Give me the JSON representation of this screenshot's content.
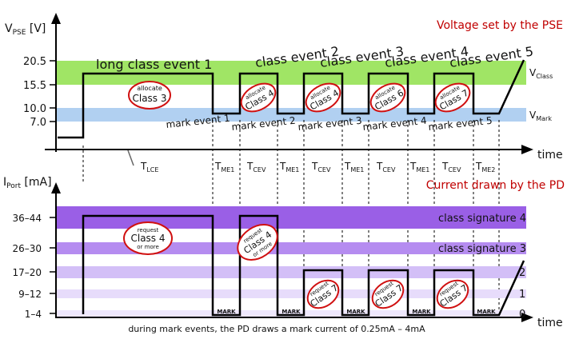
{
  "top": {
    "title": "Voltage set by the PSE",
    "axis_label_main": "V",
    "axis_label_sub": "PSE",
    "axis_label_unit": " [V]",
    "ticks": [
      "20.5",
      "15.5",
      "10.0",
      "7.0"
    ],
    "time_label": "time",
    "v_class_main": "V",
    "v_class_sub": "Class",
    "v_mark_main": "V",
    "v_mark_sub": "Mark",
    "events": [
      "long class event 1",
      "class event 2",
      "class event 3",
      "class event 4",
      "class event 5"
    ],
    "mark_events": [
      "mark event 1",
      "mark event 2",
      "mark event 3",
      "mark event 4",
      "mark event 5"
    ],
    "allocate_word": "allocate",
    "allocations": [
      "Class 3",
      "Class 4",
      "Class 4",
      "Class 6",
      "Class 7"
    ],
    "timings": [
      {
        "main": "T",
        "sub": "LCE"
      },
      {
        "main": "T",
        "sub": "ME1"
      },
      {
        "main": "T",
        "sub": "CEV"
      },
      {
        "main": "T",
        "sub": "ME1"
      },
      {
        "main": "T",
        "sub": "CEV"
      },
      {
        "main": "T",
        "sub": "ME1"
      },
      {
        "main": "T",
        "sub": "CEV"
      },
      {
        "main": "T",
        "sub": "ME1"
      },
      {
        "main": "T",
        "sub": "CEV"
      },
      {
        "main": "T",
        "sub": "ME2"
      }
    ]
  },
  "bottom": {
    "title": "Current drawn by the PD",
    "axis_label_main": "I",
    "axis_label_sub": "Port",
    "axis_label_unit": " [mA]",
    "ticks": [
      "36–44",
      "26–30",
      "17–20",
      "9–12",
      "1–4"
    ],
    "time_label": "time",
    "signatures": [
      "class signature 4",
      "class signature 3",
      "2",
      "1",
      "0"
    ],
    "mark_label": "MARK",
    "request_word": "request",
    "requests": [
      {
        "cls": "Class 4",
        "extra": "or more"
      },
      {
        "cls": "Class 4",
        "extra": "or more"
      },
      {
        "cls": "Class 7",
        "extra": ""
      },
      {
        "cls": "Class 7",
        "extra": ""
      },
      {
        "cls": "Class 7",
        "extra": ""
      }
    ],
    "footnote": "during mark events, the PD draws a mark current of 0.25mA – 4mA"
  },
  "colors": {
    "green_band": "#8fe04a",
    "blue_band": "#a8cbf0",
    "violet_strong": "#9a5fe6",
    "violet_mid": "#b58cf0",
    "violet_light": "#d3bff7",
    "violet_pale": "#e7dcfb",
    "accent_red": "#c00000",
    "ellipse_red": "#d01010"
  }
}
